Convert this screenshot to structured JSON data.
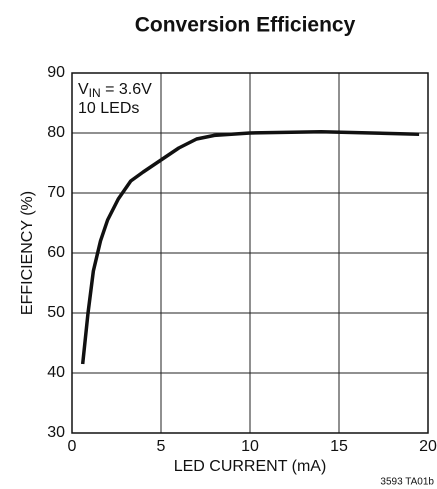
{
  "chart_data": {
    "type": "line",
    "title": "Conversion Efficiency",
    "x_label": "LED CURRENT (mA)",
    "y_label": "EFFICIENCY (%)",
    "annotation": {
      "symbol": "V",
      "subscript": "IN",
      "rest": " = 3.6V",
      "line2": "10 LEDs"
    },
    "footnote": "3593 TA01b",
    "x": [
      0.6,
      0.9,
      1.2,
      1.6,
      2.0,
      2.6,
      3.3,
      4.0,
      5.0,
      6.0,
      7.0,
      8.0,
      10.0,
      14.0,
      19.5
    ],
    "series": [
      {
        "name": "Efficiency",
        "color": "#111111",
        "values": [
          41.5,
          50,
          57,
          62,
          65.5,
          69,
          72,
          73.5,
          75.5,
          77.5,
          79,
          79.6,
          80,
          80.2,
          79.8
        ]
      }
    ],
    "xlim": [
      0,
      20
    ],
    "xticks": [
      0,
      5,
      10,
      15,
      20
    ],
    "ylim": [
      30,
      90
    ],
    "yticks": [
      30,
      40,
      50,
      60,
      70,
      80,
      90
    ],
    "grid": true
  }
}
